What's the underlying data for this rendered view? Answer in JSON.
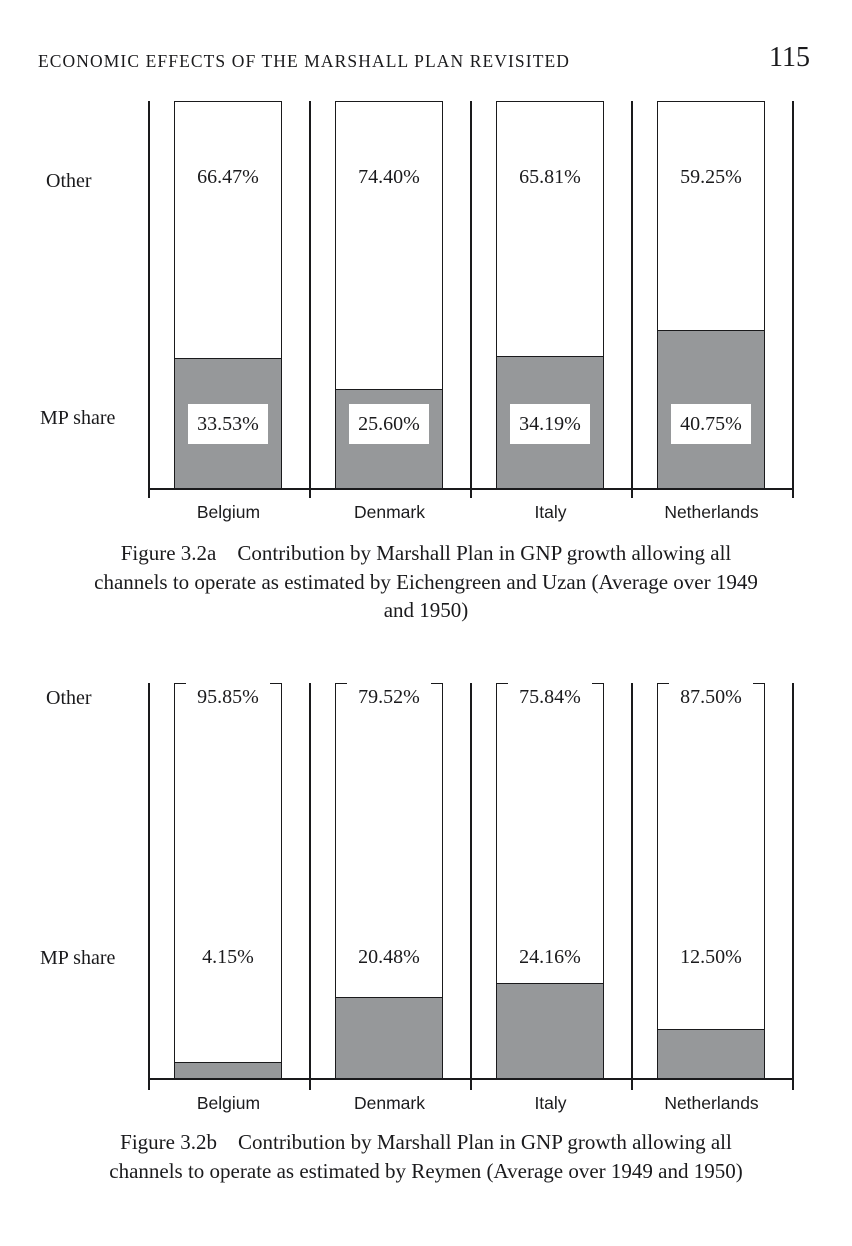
{
  "header": {
    "title": "ECONOMIC EFFECTS OF THE MARSHALL PLAN REVISITED",
    "page_number": "115"
  },
  "figures": [
    {
      "id": "figure-3.2a",
      "row_label_other": "Other",
      "row_label_mp": "MP share",
      "bars": [
        {
          "country": "Belgium",
          "other_pct": "66.47%",
          "mp_pct": "33.53%"
        },
        {
          "country": "Denmark",
          "other_pct": "74.40%",
          "mp_pct": "25.60%"
        },
        {
          "country": "Italy",
          "other_pct": "65.81%",
          "mp_pct": "34.19%"
        },
        {
          "country": "Netherlands",
          "other_pct": "59.25%",
          "mp_pct": "40.75%"
        }
      ],
      "caption_lines": [
        "Figure 3.2a Contribution by Marshall Plan in GNP growth allowing all",
        "channels to operate as estimated by Eichengreen and Uzan (Average over 1949",
        "and 1950)"
      ]
    },
    {
      "id": "figure-3.2b",
      "row_label_other": "Other",
      "row_label_mp": "MP share",
      "bars": [
        {
          "country": "Belgium",
          "other_pct": "95.85%",
          "mp_pct": "4.15%"
        },
        {
          "country": "Denmark",
          "other_pct": "79.52%",
          "mp_pct": "20.48%"
        },
        {
          "country": "Italy",
          "other_pct": "75.84%",
          "mp_pct": "24.16%"
        },
        {
          "country": "Netherlands",
          "other_pct": "87.50%",
          "mp_pct": "12.50%"
        }
      ],
      "caption_lines": [
        "Figure 3.2b Contribution by Marshall Plan in GNP growth allowing all",
        "channels to operate as estimated by Reymen (Average over 1949 and 1950)"
      ]
    }
  ],
  "chart_data": [
    {
      "type": "bar",
      "stacked": true,
      "orientation": "vertical",
      "categories": [
        "Belgium",
        "Denmark",
        "Italy",
        "Netherlands"
      ],
      "series": [
        {
          "name": "MP share",
          "values": [
            33.53,
            25.6,
            34.19,
            40.75
          ],
          "color": "#96989a"
        },
        {
          "name": "Other",
          "values": [
            66.47,
            74.4,
            65.81,
            59.25
          ],
          "color": "#ffffff"
        }
      ],
      "unit": "%",
      "ylim": [
        0,
        100
      ],
      "grid": false,
      "legend_position": "row labels at left (Other top, MP share bottom)",
      "title": "Figure 3.2a Contribution by Marshall Plan in GNP growth allowing all channels to operate as estimated by Eichengreen and Uzan (Average over 1949 and 1950)"
    },
    {
      "type": "bar",
      "stacked": true,
      "orientation": "vertical",
      "categories": [
        "Belgium",
        "Denmark",
        "Italy",
        "Netherlands"
      ],
      "series": [
        {
          "name": "MP share",
          "values": [
            4.15,
            20.48,
            24.16,
            12.5
          ],
          "color": "#96989a"
        },
        {
          "name": "Other",
          "values": [
            95.85,
            79.52,
            75.84,
            87.5
          ],
          "color": "#ffffff"
        }
      ],
      "unit": "%",
      "ylim": [
        0,
        100
      ],
      "grid": false,
      "legend_position": "row labels at left (Other top, MP share bottom)",
      "title": "Figure 3.2b Contribution by Marshall Plan in GNP growth allowing all channels to operate as estimated by Reymen (Average over 1949 and 1950)"
    }
  ],
  "colors": {
    "ink": "#1a1a1c",
    "mp_fill": "#96989a",
    "background": "#ffffff"
  }
}
